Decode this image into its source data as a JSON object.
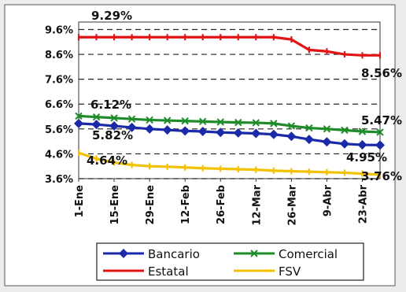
{
  "chart_data": {
    "type": "line",
    "categories": [
      "1-Ene",
      "15-Ene",
      "29-Ene",
      "12-Feb",
      "26-Feb",
      "12-Mar",
      "26-Mar",
      "9-Abr",
      "23-Abr"
    ],
    "x": [
      "1-Ene",
      "8-Ene",
      "15-Ene",
      "22-Ene",
      "29-Ene",
      "5-Feb",
      "12-Feb",
      "19-Feb",
      "26-Feb",
      "5-Mar",
      "12-Mar",
      "19-Mar",
      "26-Mar",
      "2-Abr",
      "9-Abr",
      "16-Abr",
      "23-Abr",
      "30-Abr"
    ],
    "ylim": [
      3.6,
      9.9
    ],
    "yticks": [
      "3.6%",
      "4.6%",
      "5.6%",
      "6.6%",
      "7.6%",
      "8.6%",
      "9.6%"
    ],
    "grid": "horizontal-dashed",
    "legend_position": "bottom",
    "series": [
      {
        "name": "Bancario",
        "color": "#1a2aa8",
        "marker": "diamond",
        "values": [
          5.82,
          5.78,
          5.72,
          5.66,
          5.6,
          5.56,
          5.52,
          5.5,
          5.46,
          5.44,
          5.42,
          5.38,
          5.3,
          5.18,
          5.08,
          5.0,
          4.96,
          4.95
        ]
      },
      {
        "name": "Comercial",
        "color": "#1f8c2a",
        "marker": "x",
        "values": [
          6.12,
          6.08,
          6.04,
          6.0,
          5.96,
          5.94,
          5.92,
          5.9,
          5.88,
          5.86,
          5.85,
          5.82,
          5.72,
          5.64,
          5.6,
          5.55,
          5.5,
          5.47
        ]
      },
      {
        "name": "Estatal",
        "color": "#e01414",
        "marker": "dash",
        "values": [
          9.29,
          9.29,
          9.29,
          9.29,
          9.29,
          9.29,
          9.29,
          9.29,
          9.29,
          9.29,
          9.29,
          9.29,
          9.2,
          8.78,
          8.72,
          8.6,
          8.56,
          8.56
        ]
      },
      {
        "name": "FSV",
        "color": "#f2c200",
        "marker": "dash",
        "values": [
          4.64,
          4.4,
          4.25,
          4.15,
          4.1,
          4.08,
          4.05,
          4.02,
          4.0,
          3.98,
          3.96,
          3.92,
          3.9,
          3.88,
          3.86,
          3.84,
          3.8,
          3.76
        ]
      }
    ],
    "annotations": [
      {
        "text": "9.29%",
        "series": "Estatal",
        "point": "start"
      },
      {
        "text": "8.56%",
        "series": "Estatal",
        "point": "end"
      },
      {
        "text": "6.12%",
        "series": "Comercial",
        "point": "start"
      },
      {
        "text": "5.47%",
        "series": "Comercial",
        "point": "end"
      },
      {
        "text": "5.82%",
        "series": "Bancario",
        "point": "start"
      },
      {
        "text": "4.95%",
        "series": "Bancario",
        "point": "end"
      },
      {
        "text": "4.64%",
        "series": "FSV",
        "point": "start"
      },
      {
        "text": "3.76%",
        "series": "FSV",
        "point": "end"
      }
    ]
  }
}
